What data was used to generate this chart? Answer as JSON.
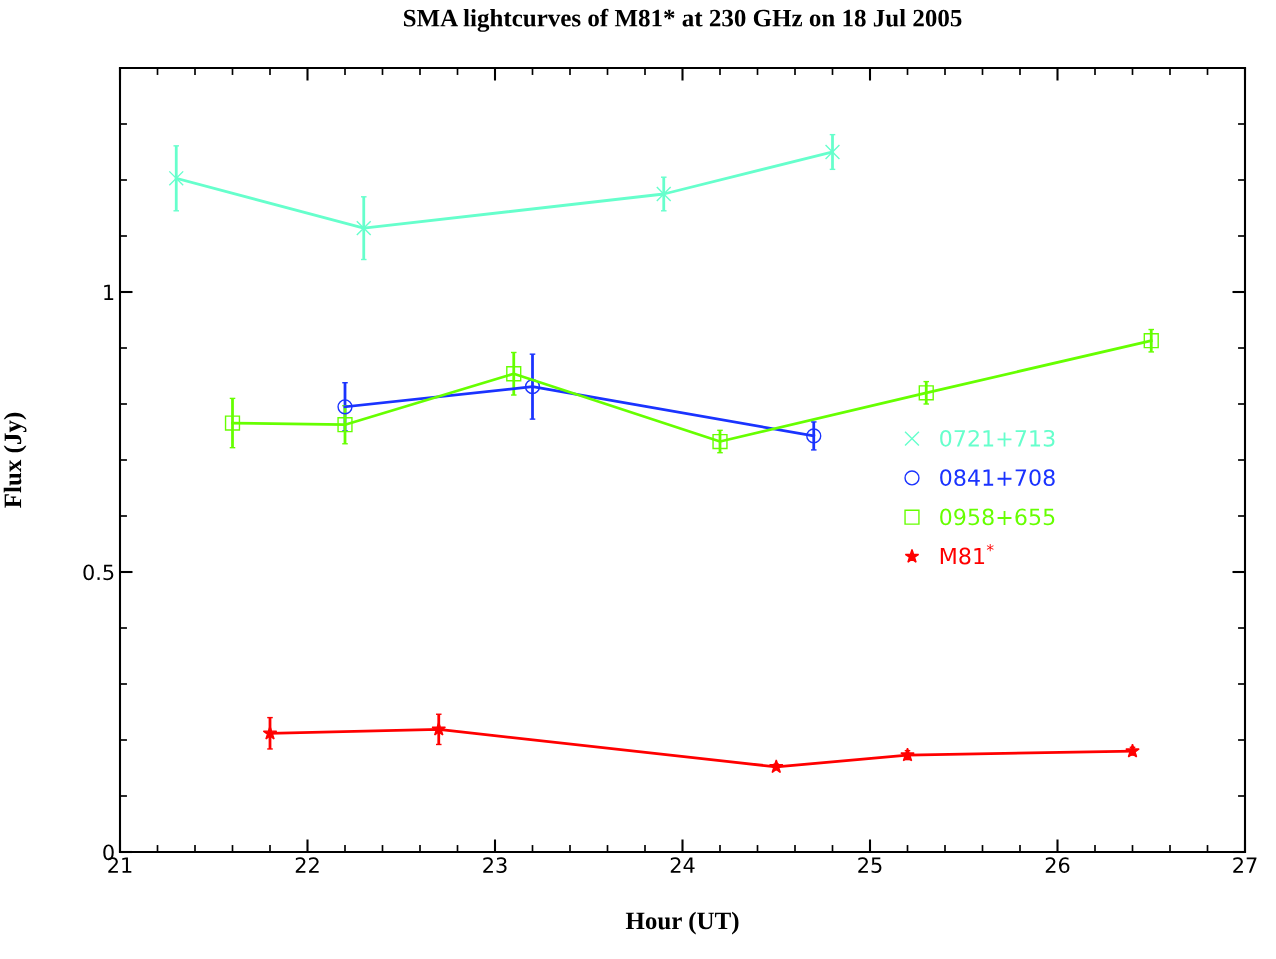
{
  "chart_data": {
    "type": "line",
    "title": "SMA lightcurves of M81* at 230 GHz on 18 Jul 2005",
    "xlabel": "Hour (UT)",
    "ylabel": "Flux (Jy)",
    "xlim": [
      21,
      27
    ],
    "xticks": [
      21,
      22,
      23,
      24,
      25,
      26,
      27
    ],
    "ylim": [
      0,
      1.4
    ],
    "yticks": [
      0,
      0.5,
      1
    ],
    "grid": false,
    "legend": "right",
    "line_style": "solid",
    "series": [
      {
        "name": "0721+713",
        "color": "#66ffcc",
        "marker": "cross",
        "x": [
          21.3,
          22.3,
          23.9,
          24.8
        ],
        "values": [
          1.203,
          1.114,
          1.175,
          1.25
        ],
        "errors": [
          0.058,
          0.056,
          0.03,
          0.031
        ]
      },
      {
        "name": "0841+708",
        "color": "#1a33ff",
        "marker": "circle",
        "x": [
          22.2,
          23.2,
          24.7
        ],
        "values": [
          0.795,
          0.831,
          0.743
        ],
        "errors": [
          0.043,
          0.058,
          0.025
        ]
      },
      {
        "name": "0958+655",
        "color": "#66ff00",
        "marker": "square",
        "x": [
          21.6,
          22.2,
          23.1,
          24.2,
          25.3,
          26.5
        ],
        "values": [
          0.766,
          0.763,
          0.854,
          0.733,
          0.82,
          0.913
        ],
        "errors": [
          0.044,
          0.034,
          0.038,
          0.02,
          0.02,
          0.02
        ]
      },
      {
        "name": "M81$^{*}$",
        "color": "#ff0000",
        "marker": "star",
        "x": [
          21.8,
          22.7,
          24.5,
          25.2,
          26.4
        ],
        "values": [
          0.212,
          0.219,
          0.152,
          0.173,
          0.18
        ],
        "errors": [
          0.028,
          0.027,
          0.005,
          0.008,
          0.007
        ]
      }
    ]
  }
}
